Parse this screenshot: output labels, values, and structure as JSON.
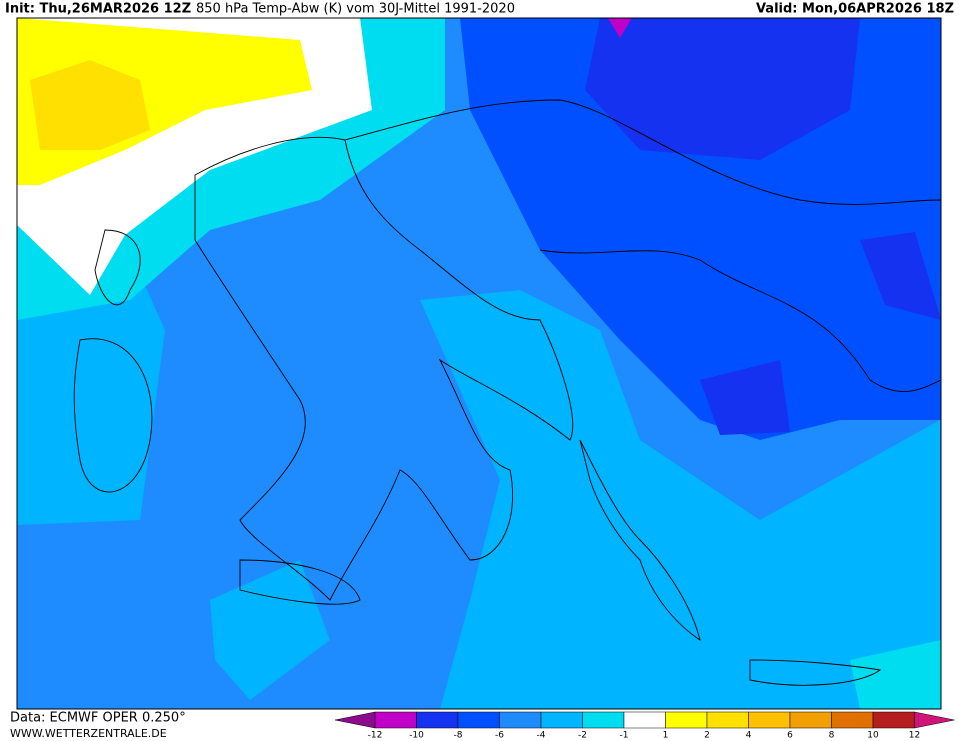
{
  "header": {
    "init": "Init: Thu,26MAR2026 12Z",
    "title": "850 hPa Temp-Abw (K) vom 30J-Mittel 1991-2020",
    "valid": "Valid: Mon,06APR2026 18Z"
  },
  "footer": {
    "source": "Data: ECMWF OPER 0.250°",
    "website": "WWW.WETTERZENTRALE.DE"
  },
  "legend": {
    "ticks": [
      -12,
      -10,
      -8,
      -6,
      -4,
      -2,
      -1,
      1,
      2,
      4,
      6,
      8,
      10,
      12
    ],
    "colors": [
      "#c000c8",
      "#1432f0",
      "#0050ff",
      "#1e8cff",
      "#00b4ff",
      "#00dcf0",
      "#ffffff",
      "#ffff00",
      "#ffe000",
      "#ffc000",
      "#f0a000",
      "#e07000",
      "#b41e1e"
    ],
    "under_color": "#8c0a8c",
    "over_color": "#d2147a"
  }
}
